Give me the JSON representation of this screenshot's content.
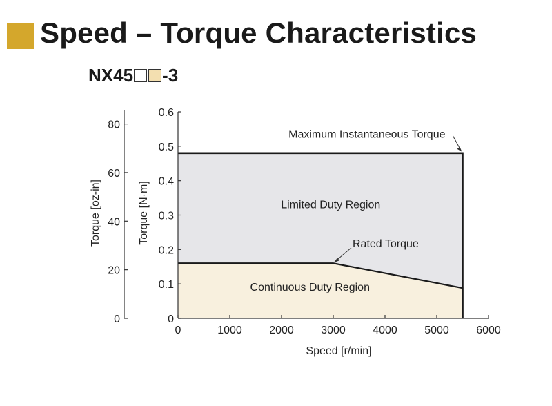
{
  "header": {
    "title": "Speed – Torque Characteristics",
    "accent_color": "#d4a72c"
  },
  "model": {
    "prefix": "NX45",
    "suffix": "-3",
    "box1_color": "#ffffff",
    "box2_color": "#f3dfb0"
  },
  "chart_data": {
    "type": "area",
    "xlabel": "Speed [r/min]",
    "ylabel": "Torque [N·m]",
    "ylabel_secondary": "Torque [oz-in]",
    "xlim": [
      0,
      6000
    ],
    "ylim": [
      0,
      0.6
    ],
    "ylim_secondary": [
      0,
      85
    ],
    "x_ticks": [
      0,
      1000,
      2000,
      3000,
      4000,
      5000,
      6000
    ],
    "y_ticks": [
      0,
      0.1,
      0.2,
      0.3,
      0.4,
      0.5,
      0.6
    ],
    "y_ticks_secondary": [
      0,
      20,
      40,
      60,
      80
    ],
    "series": [
      {
        "name": "Maximum Instantaneous Torque",
        "x": [
          0,
          5500,
          5500
        ],
        "y": [
          0.48,
          0.48,
          0
        ],
        "fill_color": "#e6e6e9"
      },
      {
        "name": "Rated Torque",
        "x": [
          0,
          3000,
          5500,
          5500
        ],
        "y": [
          0.16,
          0.16,
          0.088,
          0
        ],
        "fill_color": "#f8f0de"
      }
    ],
    "annotations": {
      "limited_region": "Limited Duty Region",
      "continuous_region": "Continuous Duty Region",
      "max_torque": "Maximum Instantaneous Torque",
      "rated_torque": "Rated Torque"
    },
    "grid": false
  }
}
